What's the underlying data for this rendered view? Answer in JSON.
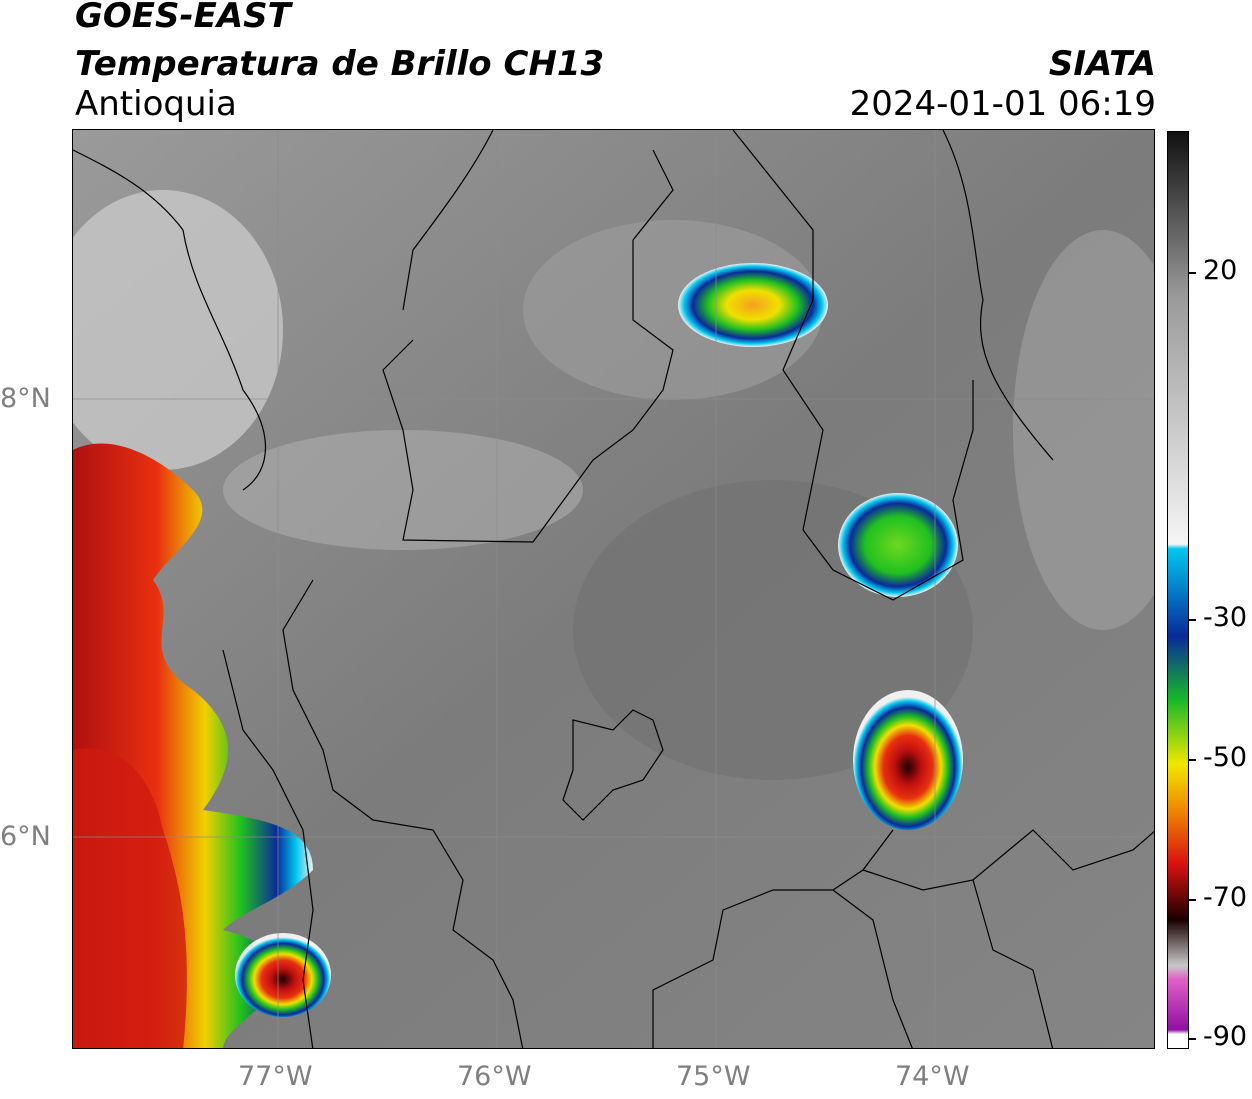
{
  "header": {
    "satellite": "GOES-EAST",
    "product": "Temperatura de Brillo CH13",
    "region": "Antioquia",
    "organization": "SIATA",
    "datetime": "2024-01-01 06:19"
  },
  "axes": {
    "latitude_labels": [
      "8°N",
      "6°N"
    ],
    "longitude_labels": [
      "77°W",
      "76°W",
      "75°W",
      "74°W"
    ]
  },
  "colorbar": {
    "labels": [
      "20",
      "-30",
      "-50",
      "-70",
      "-90"
    ],
    "colors": {
      "warm_top": "#111111",
      "gray": "#9a9a9a",
      "white": "#f5f5f5",
      "cyan": "#00c8f0",
      "blue": "#0a2a9a",
      "green": "#18b82a",
      "yellow": "#f0e800",
      "orange": "#f08800",
      "red": "#d81010",
      "dark": "#1a0000",
      "pink": "#e060c8",
      "purple": "#9010a0"
    }
  }
}
